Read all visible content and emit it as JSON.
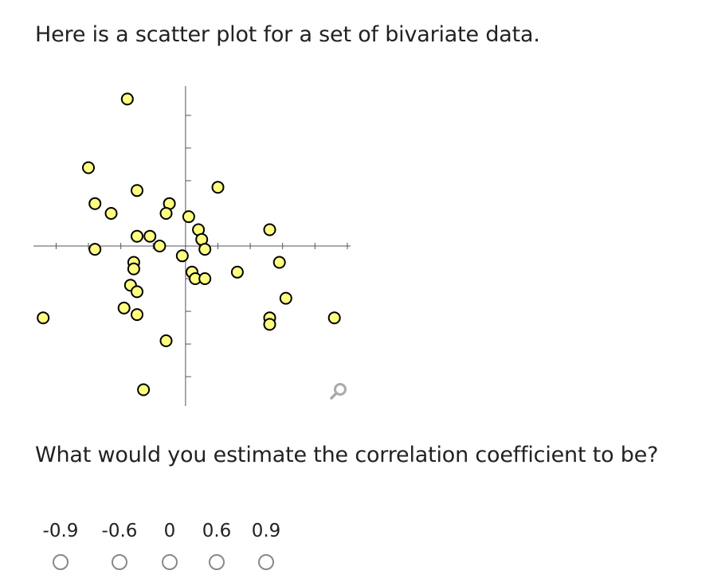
{
  "prompt": "Here is a scatter plot for a set of bivariate data.",
  "question": "What would you estimate the correlation coefficient to be?",
  "zoom_icon": "magnifier-icon",
  "colors": {
    "point_fill": "#ffff80",
    "point_stroke": "#000000",
    "axis": "#555555",
    "zoom": "#aaaaaa"
  },
  "choices": [
    {
      "label": "-0.9"
    },
    {
      "label": "-0.6"
    },
    {
      "label": "0"
    },
    {
      "label": "0.6"
    },
    {
      "label": "0.9"
    }
  ],
  "chart_data": {
    "type": "scatter",
    "grid": false,
    "xlim": [
      -4.7,
      5.1
    ],
    "ylim": [
      -4.9,
      4.9
    ],
    "points": [
      [
        -1.8,
        4.5
      ],
      [
        -3.0,
        2.4
      ],
      [
        -1.5,
        1.7
      ],
      [
        -2.8,
        1.3
      ],
      [
        -2.3,
        1.0
      ],
      [
        -0.5,
        1.3
      ],
      [
        -0.6,
        1.0
      ],
      [
        0.1,
        0.9
      ],
      [
        0.4,
        0.5
      ],
      [
        1.0,
        1.8
      ],
      [
        -1.5,
        0.3
      ],
      [
        -1.1,
        0.3
      ],
      [
        -0.8,
        0.0
      ],
      [
        -2.8,
        -0.1
      ],
      [
        -1.6,
        -0.5
      ],
      [
        -1.6,
        -0.7
      ],
      [
        0.5,
        0.2
      ],
      [
        0.6,
        -0.1
      ],
      [
        -0.1,
        -0.3
      ],
      [
        0.2,
        -0.8
      ],
      [
        0.3,
        -1.0
      ],
      [
        0.6,
        -1.0
      ],
      [
        1.6,
        -0.8
      ],
      [
        2.6,
        0.5
      ],
      [
        2.9,
        -0.5
      ],
      [
        -1.7,
        -1.2
      ],
      [
        -1.5,
        -1.4
      ],
      [
        3.1,
        -1.6
      ],
      [
        -1.9,
        -1.9
      ],
      [
        -1.5,
        -2.1
      ],
      [
        2.6,
        -2.2
      ],
      [
        2.6,
        -2.4
      ],
      [
        4.6,
        -2.2
      ],
      [
        -4.4,
        -2.2
      ],
      [
        -0.6,
        -2.9
      ],
      [
        -1.3,
        -4.4
      ]
    ]
  }
}
